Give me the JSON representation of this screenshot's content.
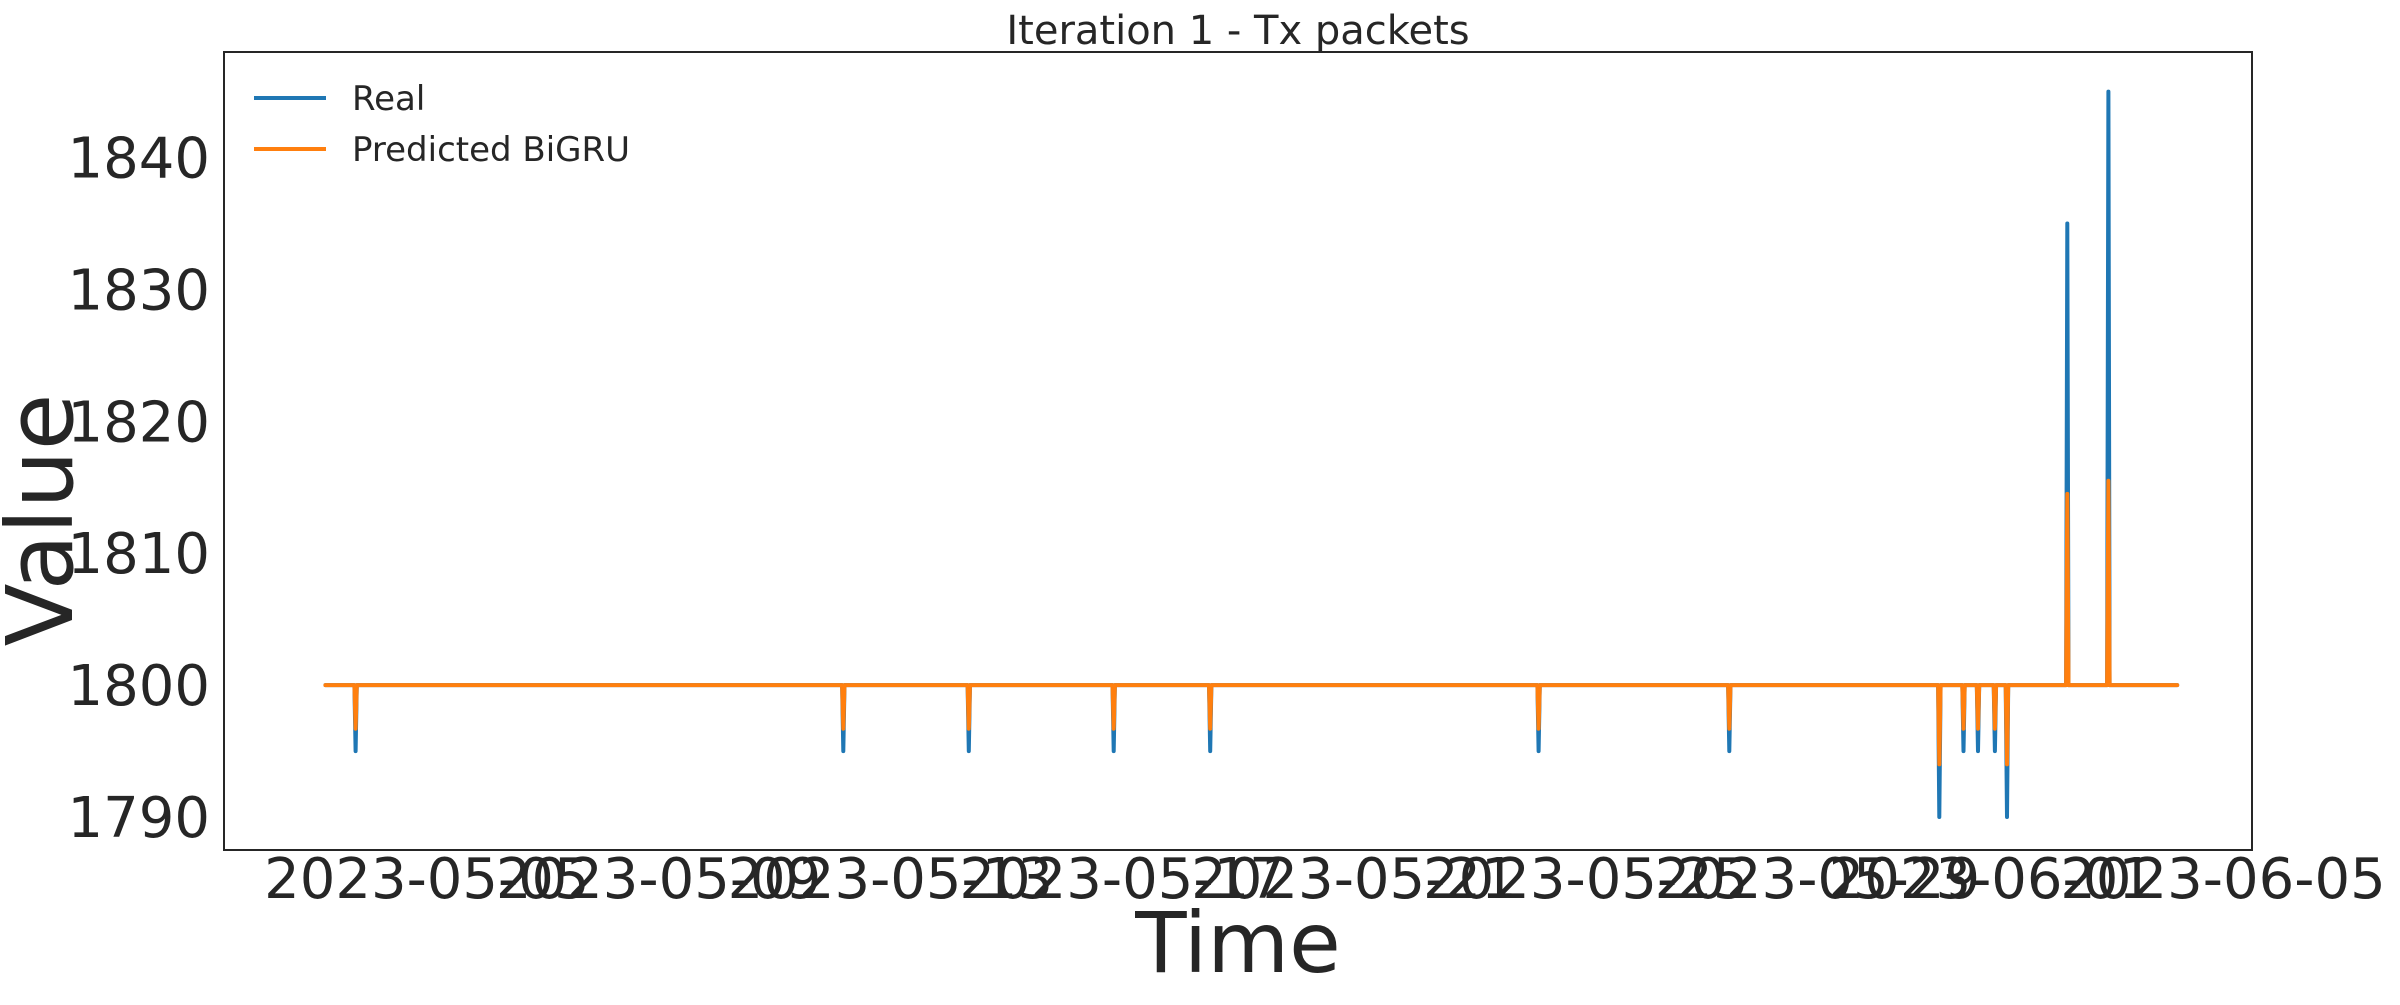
{
  "chart_data": {
    "type": "line",
    "title": "Iteration 1 - Tx packets",
    "xlabel": "Time",
    "ylabel": "Value",
    "x_type": "date",
    "xlim": [
      "2023-05-01T12:00",
      "2023-06-05T12:00"
    ],
    "ylim": [
      1787.5,
      1848
    ],
    "xticks": [
      "2023-05-05",
      "2023-05-09",
      "2023-05-13",
      "2023-05-17",
      "2023-05-21",
      "2023-05-25",
      "2023-05-29",
      "2023-06-01",
      "2023-06-05"
    ],
    "yticks": [
      1790,
      1800,
      1810,
      1820,
      1830,
      1840
    ],
    "grid": false,
    "legend_position": "top-left",
    "colors": {
      "real": "#1f77b4",
      "predicted": "#ff7f0e",
      "axes": "#262626",
      "background": "#ffffff"
    },
    "series": [
      {
        "name": "Real",
        "color": "#1f77b4",
        "points": [
          [
            "2023-05-03T06:00",
            1800
          ],
          [
            "2023-05-03T18:00",
            1800
          ],
          [
            "2023-05-03T18:30",
            1795
          ],
          [
            "2023-05-03T19:00",
            1800
          ],
          [
            "2023-05-12T04:00",
            1800
          ],
          [
            "2023-05-12T04:30",
            1795
          ],
          [
            "2023-05-12T05:00",
            1800
          ],
          [
            "2023-05-14T08:00",
            1800
          ],
          [
            "2023-05-14T08:30",
            1795
          ],
          [
            "2023-05-14T09:00",
            1800
          ],
          [
            "2023-05-16T20:00",
            1800
          ],
          [
            "2023-05-16T20:30",
            1795
          ],
          [
            "2023-05-16T21:00",
            1800
          ],
          [
            "2023-05-18T12:00",
            1800
          ],
          [
            "2023-05-18T12:30",
            1795
          ],
          [
            "2023-05-18T13:00",
            1800
          ],
          [
            "2023-05-24T04:00",
            1800
          ],
          [
            "2023-05-24T04:30",
            1795
          ],
          [
            "2023-05-24T05:00",
            1800
          ],
          [
            "2023-05-27T11:00",
            1800
          ],
          [
            "2023-05-27T11:30",
            1795
          ],
          [
            "2023-05-27T12:00",
            1800
          ],
          [
            "2023-05-31T02:00",
            1800
          ],
          [
            "2023-05-31T02:30",
            1790
          ],
          [
            "2023-05-31T03:00",
            1800
          ],
          [
            "2023-05-31T12:00",
            1800
          ],
          [
            "2023-05-31T12:30",
            1795
          ],
          [
            "2023-05-31T13:00",
            1800
          ],
          [
            "2023-05-31T18:00",
            1800
          ],
          [
            "2023-05-31T18:30",
            1795
          ],
          [
            "2023-05-31T19:00",
            1800
          ],
          [
            "2023-06-01T01:00",
            1800
          ],
          [
            "2023-06-01T01:30",
            1795
          ],
          [
            "2023-06-01T02:00",
            1800
          ],
          [
            "2023-06-01T06:00",
            1800
          ],
          [
            "2023-06-01T06:30",
            1790
          ],
          [
            "2023-06-01T07:00",
            1800
          ],
          [
            "2023-06-02T07:00",
            1800
          ],
          [
            "2023-06-02T07:30",
            1835
          ],
          [
            "2023-06-02T08:00",
            1800
          ],
          [
            "2023-06-03T00:00",
            1800
          ],
          [
            "2023-06-03T00:30",
            1845
          ],
          [
            "2023-06-03T01:00",
            1800
          ],
          [
            "2023-06-04T05:00",
            1800
          ]
        ]
      },
      {
        "name": "Predicted BiGRU",
        "color": "#ff7f0e",
        "points": [
          [
            "2023-05-03T06:00",
            1800
          ],
          [
            "2023-05-03T18:00",
            1800
          ],
          [
            "2023-05-03T18:30",
            1796.7
          ],
          [
            "2023-05-03T19:00",
            1800
          ],
          [
            "2023-05-12T04:00",
            1800
          ],
          [
            "2023-05-12T04:30",
            1796.7
          ],
          [
            "2023-05-12T05:00",
            1800
          ],
          [
            "2023-05-14T08:00",
            1800
          ],
          [
            "2023-05-14T08:30",
            1796.7
          ],
          [
            "2023-05-14T09:00",
            1800
          ],
          [
            "2023-05-16T20:00",
            1800
          ],
          [
            "2023-05-16T20:30",
            1796.7
          ],
          [
            "2023-05-16T21:00",
            1800
          ],
          [
            "2023-05-18T12:00",
            1800
          ],
          [
            "2023-05-18T12:30",
            1796.7
          ],
          [
            "2023-05-18T13:00",
            1800
          ],
          [
            "2023-05-24T04:00",
            1800
          ],
          [
            "2023-05-24T04:30",
            1796.7
          ],
          [
            "2023-05-24T05:00",
            1800
          ],
          [
            "2023-05-27T11:00",
            1800
          ],
          [
            "2023-05-27T11:30",
            1796.7
          ],
          [
            "2023-05-27T12:00",
            1800
          ],
          [
            "2023-05-31T02:00",
            1800
          ],
          [
            "2023-05-31T02:30",
            1794
          ],
          [
            "2023-05-31T03:00",
            1800
          ],
          [
            "2023-05-31T12:00",
            1800
          ],
          [
            "2023-05-31T12:30",
            1796.7
          ],
          [
            "2023-05-31T13:00",
            1800
          ],
          [
            "2023-05-31T18:00",
            1800
          ],
          [
            "2023-05-31T18:30",
            1796.7
          ],
          [
            "2023-05-31T19:00",
            1800
          ],
          [
            "2023-06-01T01:00",
            1800
          ],
          [
            "2023-06-01T01:30",
            1796.7
          ],
          [
            "2023-06-01T02:00",
            1800
          ],
          [
            "2023-06-01T06:00",
            1800
          ],
          [
            "2023-06-01T06:30",
            1794
          ],
          [
            "2023-06-01T07:00",
            1800
          ],
          [
            "2023-06-02T07:00",
            1800
          ],
          [
            "2023-06-02T07:30",
            1814.5
          ],
          [
            "2023-06-02T08:00",
            1800
          ],
          [
            "2023-06-03T00:00",
            1800
          ],
          [
            "2023-06-03T00:30",
            1815.5
          ],
          [
            "2023-06-03T01:00",
            1800
          ],
          [
            "2023-06-04T05:00",
            1800
          ]
        ]
      }
    ]
  }
}
